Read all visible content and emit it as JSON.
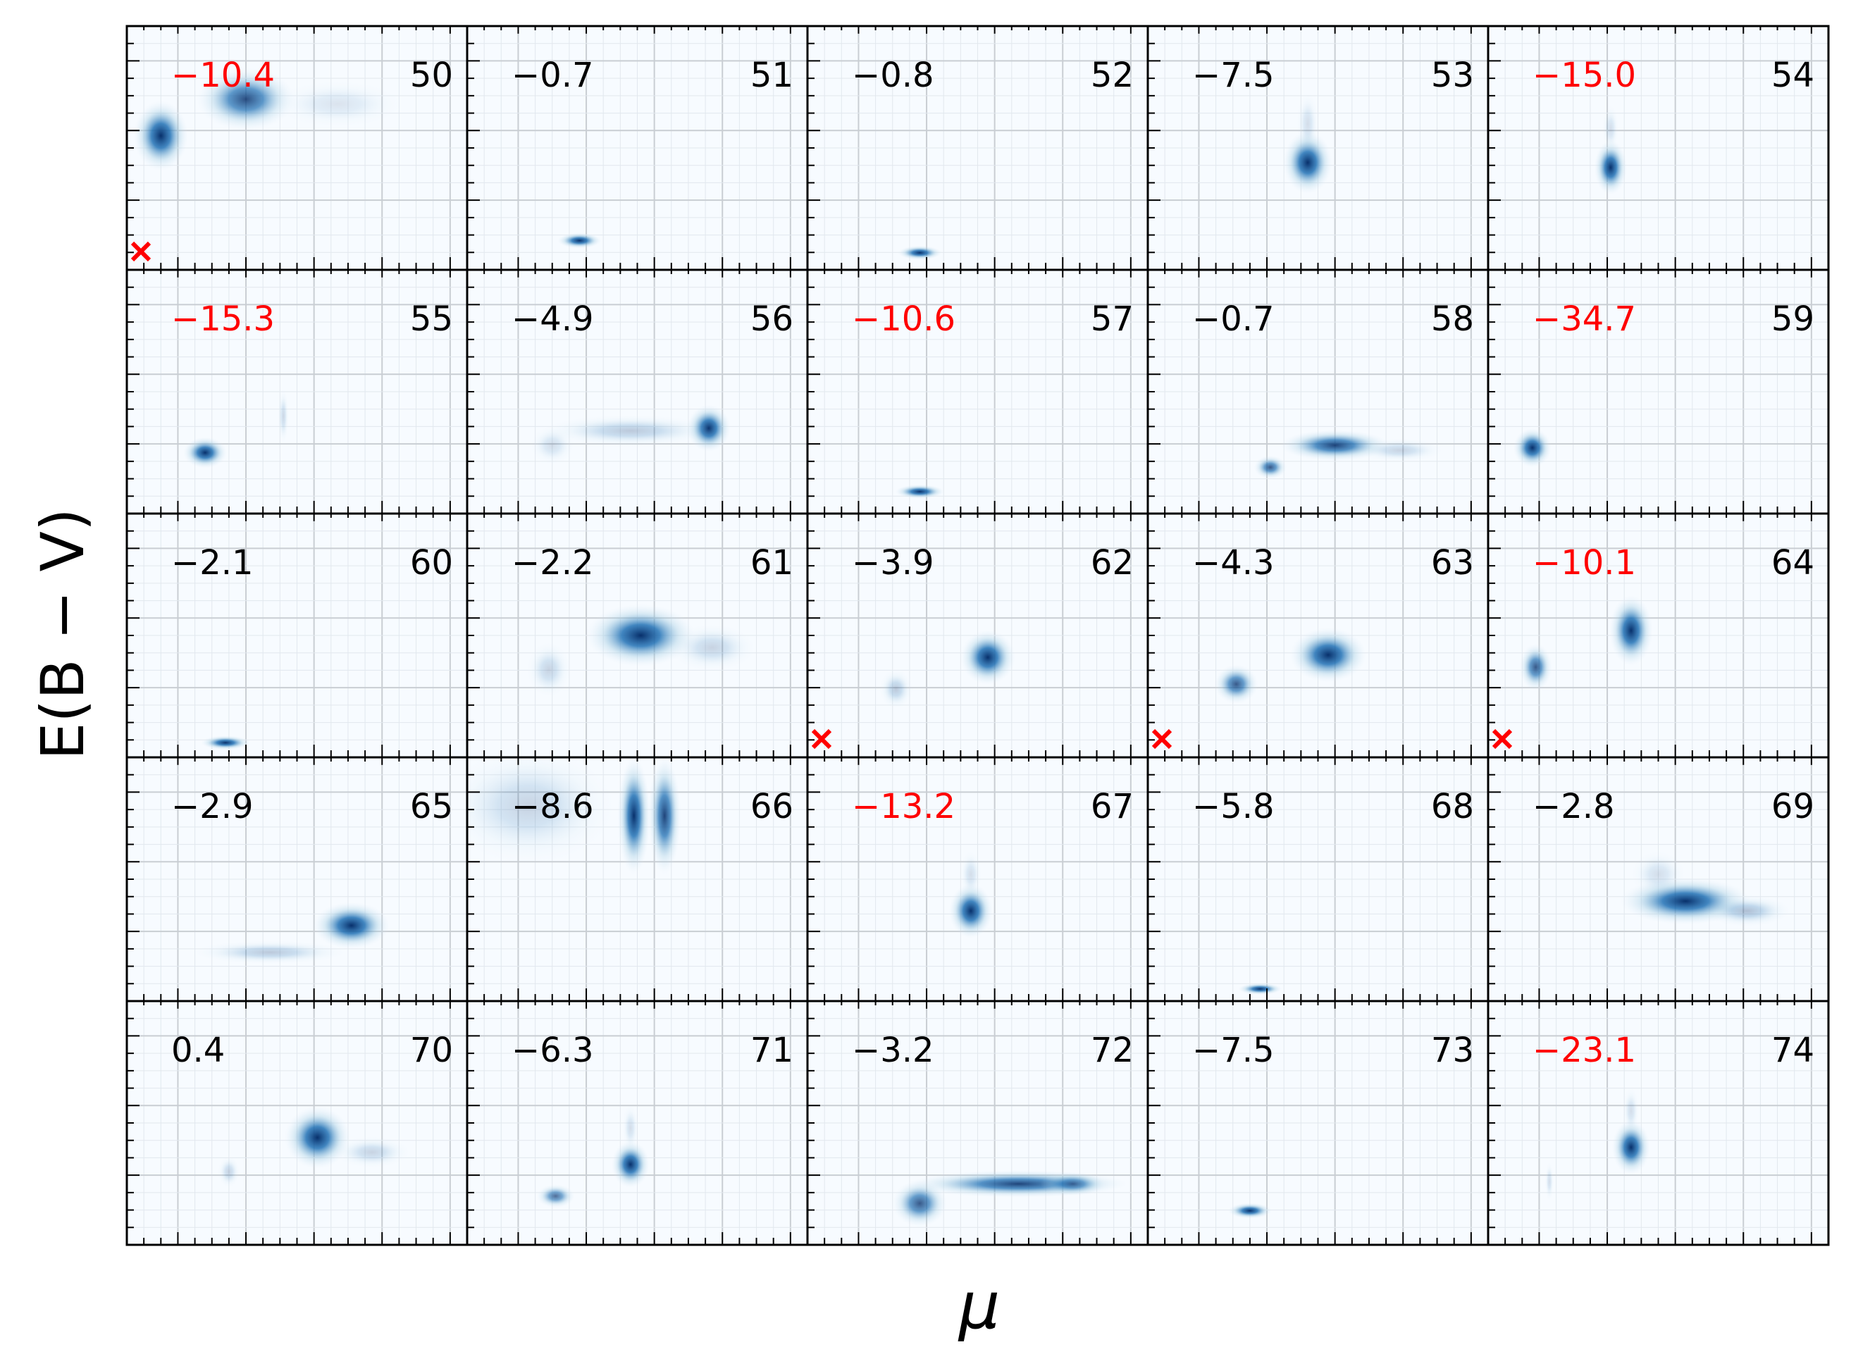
{
  "colors": {
    "highlight_text": "#ff0000",
    "normal_text": "#000000",
    "density_dark": "#08306b",
    "density_mid": "#2171b5",
    "panel_background": "#f7fbff",
    "marker": "#ff0000"
  },
  "chart_data": {
    "type": "heatmap",
    "title": "",
    "xlabel": "μ",
    "ylabel": "E(B − V)",
    "grid": true,
    "layout": "5 rows × 5 columns of panels with shared axes; tick labels are not printed",
    "panels": [
      {
        "id": "50",
        "value": "−10.4",
        "highlight": true,
        "marker": true,
        "blobs": [
          [
            0.1,
            0.45,
            0.05,
            0.09,
            1.0
          ],
          [
            0.35,
            0.3,
            0.09,
            0.08,
            0.85
          ],
          [
            0.62,
            0.32,
            0.12,
            0.06,
            0.12
          ]
        ]
      },
      {
        "id": "51",
        "value": "−0.7",
        "highlight": false,
        "marker": false,
        "blobs": [
          [
            0.33,
            0.88,
            0.04,
            0.02,
            1.0
          ]
        ]
      },
      {
        "id": "52",
        "value": "−0.8",
        "highlight": false,
        "marker": false,
        "blobs": [
          [
            0.33,
            0.93,
            0.04,
            0.018,
            1.0
          ]
        ]
      },
      {
        "id": "53",
        "value": "−7.5",
        "highlight": false,
        "marker": false,
        "blobs": [
          [
            0.47,
            0.56,
            0.045,
            0.08,
            1.0
          ],
          [
            0.47,
            0.4,
            0.02,
            0.08,
            0.15
          ]
        ]
      },
      {
        "id": "54",
        "value": "−15.0",
        "highlight": true,
        "marker": false,
        "blobs": [
          [
            0.36,
            0.58,
            0.03,
            0.07,
            1.0
          ],
          [
            0.36,
            0.42,
            0.015,
            0.06,
            0.15
          ]
        ]
      },
      {
        "id": "55",
        "value": "−15.3",
        "highlight": true,
        "marker": false,
        "blobs": [
          [
            0.23,
            0.75,
            0.04,
            0.04,
            1.0
          ],
          [
            0.46,
            0.6,
            0.01,
            0.07,
            0.18
          ]
        ]
      },
      {
        "id": "56",
        "value": "−4.9",
        "highlight": false,
        "marker": false,
        "blobs": [
          [
            0.71,
            0.65,
            0.04,
            0.06,
            1.0
          ],
          [
            0.48,
            0.66,
            0.16,
            0.04,
            0.25
          ],
          [
            0.25,
            0.72,
            0.04,
            0.05,
            0.15
          ]
        ]
      },
      {
        "id": "57",
        "value": "−10.6",
        "highlight": true,
        "marker": false,
        "blobs": [
          [
            0.33,
            0.91,
            0.045,
            0.018,
            1.0
          ]
        ]
      },
      {
        "id": "58",
        "value": "−0.7",
        "highlight": false,
        "marker": false,
        "blobs": [
          [
            0.55,
            0.72,
            0.1,
            0.04,
            0.9
          ],
          [
            0.36,
            0.81,
            0.03,
            0.03,
            0.8
          ],
          [
            0.74,
            0.74,
            0.08,
            0.03,
            0.2
          ]
        ]
      },
      {
        "id": "59",
        "value": "−34.7",
        "highlight": true,
        "marker": false,
        "blobs": [
          [
            0.13,
            0.73,
            0.035,
            0.05,
            1.0
          ]
        ]
      },
      {
        "id": "60",
        "value": "−2.1",
        "highlight": false,
        "marker": false,
        "blobs": [
          [
            0.29,
            0.94,
            0.045,
            0.018,
            1.0
          ]
        ]
      },
      {
        "id": "61",
        "value": "−2.2",
        "highlight": false,
        "marker": false,
        "blobs": [
          [
            0.51,
            0.5,
            0.1,
            0.08,
            1.0
          ],
          [
            0.72,
            0.55,
            0.08,
            0.06,
            0.2
          ],
          [
            0.24,
            0.64,
            0.04,
            0.07,
            0.2
          ]
        ]
      },
      {
        "id": "62",
        "value": "−3.9",
        "highlight": false,
        "marker": false,
        "blobs": [
          [
            0.53,
            0.59,
            0.05,
            0.07,
            1.0
          ],
          [
            0.26,
            0.72,
            0.03,
            0.05,
            0.25
          ]
        ],
        "marker_pos": "bottom-left"
      },
      {
        "id": "63",
        "value": "−4.3",
        "highlight": false,
        "marker": false,
        "blobs": [
          [
            0.53,
            0.58,
            0.07,
            0.07,
            1.0
          ],
          [
            0.26,
            0.7,
            0.04,
            0.05,
            0.8
          ]
        ]
      },
      {
        "id": "64",
        "value": "−10.1",
        "highlight": true,
        "marker": false,
        "blobs": [
          [
            0.42,
            0.48,
            0.04,
            0.09,
            1.0
          ],
          [
            0.14,
            0.63,
            0.03,
            0.06,
            0.8
          ]
        ]
      }
    ],
    "panels_row4_5": [
      {
        "id": "65",
        "value": "−2.9",
        "highlight": false,
        "marker": false,
        "blobs": [
          [
            0.66,
            0.69,
            0.07,
            0.06,
            1.0
          ],
          [
            0.42,
            0.8,
            0.14,
            0.03,
            0.25
          ]
        ]
      },
      {
        "id": "66",
        "value": "−8.6",
        "highlight": false,
        "marker": false,
        "blobs": [
          [
            0.49,
            0.24,
            0.03,
            0.15,
            1.0
          ],
          [
            0.58,
            0.24,
            0.03,
            0.15,
            0.9
          ],
          [
            0.18,
            0.2,
            0.16,
            0.15,
            0.2
          ]
        ]
      },
      {
        "id": "67",
        "value": "−13.2",
        "highlight": true,
        "marker": false,
        "blobs": [
          [
            0.48,
            0.63,
            0.04,
            0.07,
            1.0
          ],
          [
            0.48,
            0.48,
            0.02,
            0.06,
            0.15
          ]
        ]
      },
      {
        "id": "68",
        "value": "−5.8",
        "highlight": false,
        "marker": false,
        "blobs": [
          [
            0.33,
            0.95,
            0.04,
            0.015,
            1.0
          ]
        ]
      },
      {
        "id": "69",
        "value": "−2.8",
        "highlight": false,
        "marker": false,
        "blobs": [
          [
            0.58,
            0.59,
            0.12,
            0.06,
            1.0
          ],
          [
            0.76,
            0.63,
            0.08,
            0.04,
            0.3
          ],
          [
            0.5,
            0.48,
            0.05,
            0.06,
            0.15
          ]
        ]
      },
      {
        "id": "70",
        "value": "0.4",
        "highlight": false,
        "marker": false,
        "blobs": [
          [
            0.56,
            0.56,
            0.06,
            0.08,
            1.0
          ],
          [
            0.72,
            0.62,
            0.07,
            0.04,
            0.2
          ],
          [
            0.3,
            0.7,
            0.02,
            0.04,
            0.2
          ]
        ]
      },
      {
        "id": "71",
        "value": "−6.3",
        "highlight": false,
        "marker": false,
        "blobs": [
          [
            0.48,
            0.67,
            0.035,
            0.06,
            1.0
          ],
          [
            0.26,
            0.8,
            0.035,
            0.03,
            0.7
          ],
          [
            0.48,
            0.52,
            0.015,
            0.06,
            0.15
          ]
        ]
      },
      {
        "id": "72",
        "value": "−3.2",
        "highlight": false,
        "marker": false,
        "blobs": [
          [
            0.62,
            0.75,
            0.2,
            0.035,
            0.9
          ],
          [
            0.33,
            0.83,
            0.05,
            0.06,
            0.8
          ],
          [
            0.78,
            0.75,
            0.06,
            0.03,
            0.7
          ]
        ]
      },
      {
        "id": "73",
        "value": "−7.5",
        "highlight": false,
        "marker": false,
        "blobs": [
          [
            0.3,
            0.86,
            0.04,
            0.02,
            1.0
          ]
        ]
      },
      {
        "id": "74",
        "value": "−23.1",
        "highlight": true,
        "marker": false,
        "blobs": [
          [
            0.42,
            0.6,
            0.035,
            0.07,
            1.0
          ],
          [
            0.42,
            0.45,
            0.015,
            0.06,
            0.15
          ],
          [
            0.18,
            0.74,
            0.008,
            0.05,
            0.15
          ]
        ]
      }
    ]
  }
}
